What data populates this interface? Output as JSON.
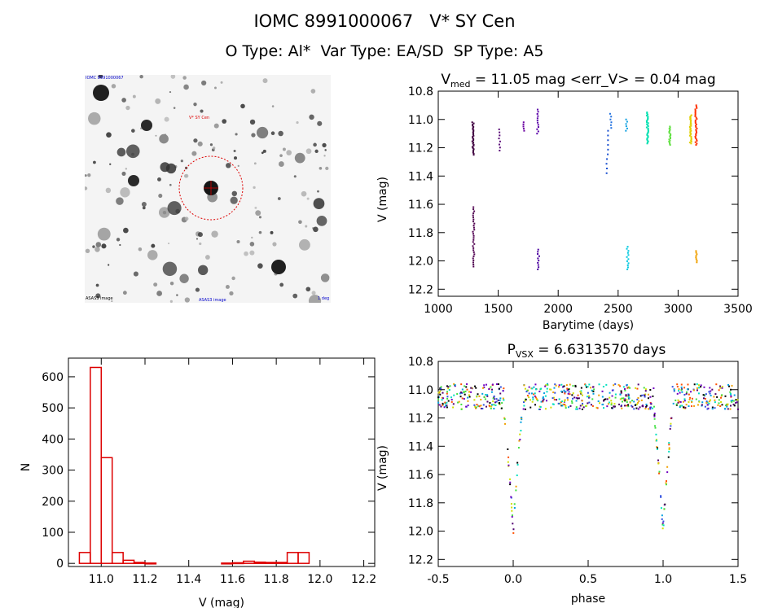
{
  "header": {
    "title": "IOMC 8991000067   V* SY Cen",
    "subtitle": "O Type: Al*  Var Type: EA/SD  SP Type: A5"
  },
  "finder": {
    "labels": [
      "IOMC 8991000067",
      "ASAS3 image",
      "V* SY Cen",
      "ASAS3 image",
      "1 deg"
    ],
    "circle_color": "#dd0000",
    "label_color": "#0000cc"
  },
  "chart_data": [
    {
      "id": "lightcurve",
      "type": "scatter",
      "title_main": "V",
      "title_sub": "med",
      "title_rest": " = 11.05 mag <err_V> = 0.04 mag",
      "xlabel": "Barytime (days)",
      "ylabel": "V (mag)",
      "xlim": [
        1000,
        3500
      ],
      "ylim": [
        12.25,
        10.8
      ],
      "xticks": [
        1000,
        1500,
        2000,
        2500,
        3000,
        3500
      ],
      "yticks": [
        10.8,
        11.0,
        11.2,
        11.4,
        11.6,
        11.8,
        12.0,
        12.2
      ],
      "groups": [
        {
          "x": 1290,
          "y0": 11.02,
          "y1": 11.25,
          "n": 30,
          "color": "#400040"
        },
        {
          "x": 1295,
          "y0": 11.62,
          "y1": 12.04,
          "n": 30,
          "color": "#500050"
        },
        {
          "x": 1510,
          "y0": 11.07,
          "y1": 11.22,
          "n": 8,
          "color": "#5a0a78"
        },
        {
          "x": 1710,
          "y0": 11.02,
          "y1": 11.08,
          "n": 5,
          "color": "#6a00a0"
        },
        {
          "x": 1830,
          "y0": 10.93,
          "y1": 11.1,
          "n": 12,
          "color": "#5a00a8"
        },
        {
          "x": 1835,
          "y0": 11.92,
          "y1": 12.06,
          "n": 10,
          "color": "#4a00a0"
        },
        {
          "x": 2410,
          "y0": 11.08,
          "y1": 11.38,
          "n": 10,
          "color": "#1a50d0"
        },
        {
          "x": 2440,
          "y0": 10.96,
          "y1": 11.06,
          "n": 6,
          "color": "#2070e0"
        },
        {
          "x": 2570,
          "y0": 11.0,
          "y1": 11.08,
          "n": 6,
          "color": "#10a0e0"
        },
        {
          "x": 2580,
          "y0": 11.9,
          "y1": 12.06,
          "n": 12,
          "color": "#00c8e0"
        },
        {
          "x": 2745,
          "y0": 10.95,
          "y1": 11.17,
          "n": 30,
          "color": "#00e0b0"
        },
        {
          "x": 2930,
          "y0": 11.05,
          "y1": 11.18,
          "n": 18,
          "color": "#60e040"
        },
        {
          "x": 3105,
          "y0": 10.97,
          "y1": 11.17,
          "n": 30,
          "color": "#e0d000"
        },
        {
          "x": 3150,
          "y0": 10.9,
          "y1": 11.18,
          "n": 30,
          "color": "#ff3000"
        },
        {
          "x": 3155,
          "y0": 11.93,
          "y1": 12.01,
          "n": 8,
          "color": "#f0a000"
        }
      ]
    },
    {
      "id": "histogram",
      "type": "bar",
      "xlabel": "V (mag)",
      "ylabel": "N",
      "xlim": [
        10.85,
        12.25
      ],
      "ylim": [
        -10,
        660
      ],
      "xticks": [
        11.0,
        11.2,
        11.4,
        11.6,
        11.8,
        12.0,
        12.2
      ],
      "yticks": [
        0,
        100,
        200,
        300,
        400,
        500,
        600
      ],
      "bin_edges": [
        10.9,
        10.95,
        11.0,
        11.05,
        11.1,
        11.15,
        11.2,
        11.25,
        11.3,
        11.35,
        11.4,
        11.45,
        11.5,
        11.55,
        11.6,
        11.65,
        11.7,
        11.75,
        11.8,
        11.85,
        11.9,
        11.95,
        12.0,
        12.05
      ],
      "counts": [
        35,
        630,
        340,
        35,
        10,
        3,
        1,
        0,
        0,
        0,
        0,
        0,
        0,
        1,
        2,
        7,
        4,
        3,
        3,
        35,
        35,
        0,
        0
      ],
      "color": "#dd0000"
    },
    {
      "id": "phased",
      "type": "scatter",
      "title_main": "P",
      "title_sub": "VSX",
      "title_rest": " = 6.6313570 days",
      "xlabel": "phase",
      "ylabel": "V (mag)",
      "xlim": [
        -0.5,
        1.5
      ],
      "ylim": [
        12.25,
        10.8
      ],
      "xticks": [
        -0.5,
        0.0,
        0.5,
        1.0,
        1.5
      ],
      "yticks": [
        10.8,
        11.0,
        11.2,
        11.4,
        11.6,
        11.8,
        12.0,
        12.2
      ],
      "eclipse_depth": 12.0,
      "baseline": 11.05,
      "palette": [
        "#000000",
        "#500070",
        "#7000c0",
        "#3050e0",
        "#00a0e0",
        "#00e0c0",
        "#40e040",
        "#d0e000",
        "#f0a000",
        "#ff5000"
      ]
    }
  ]
}
